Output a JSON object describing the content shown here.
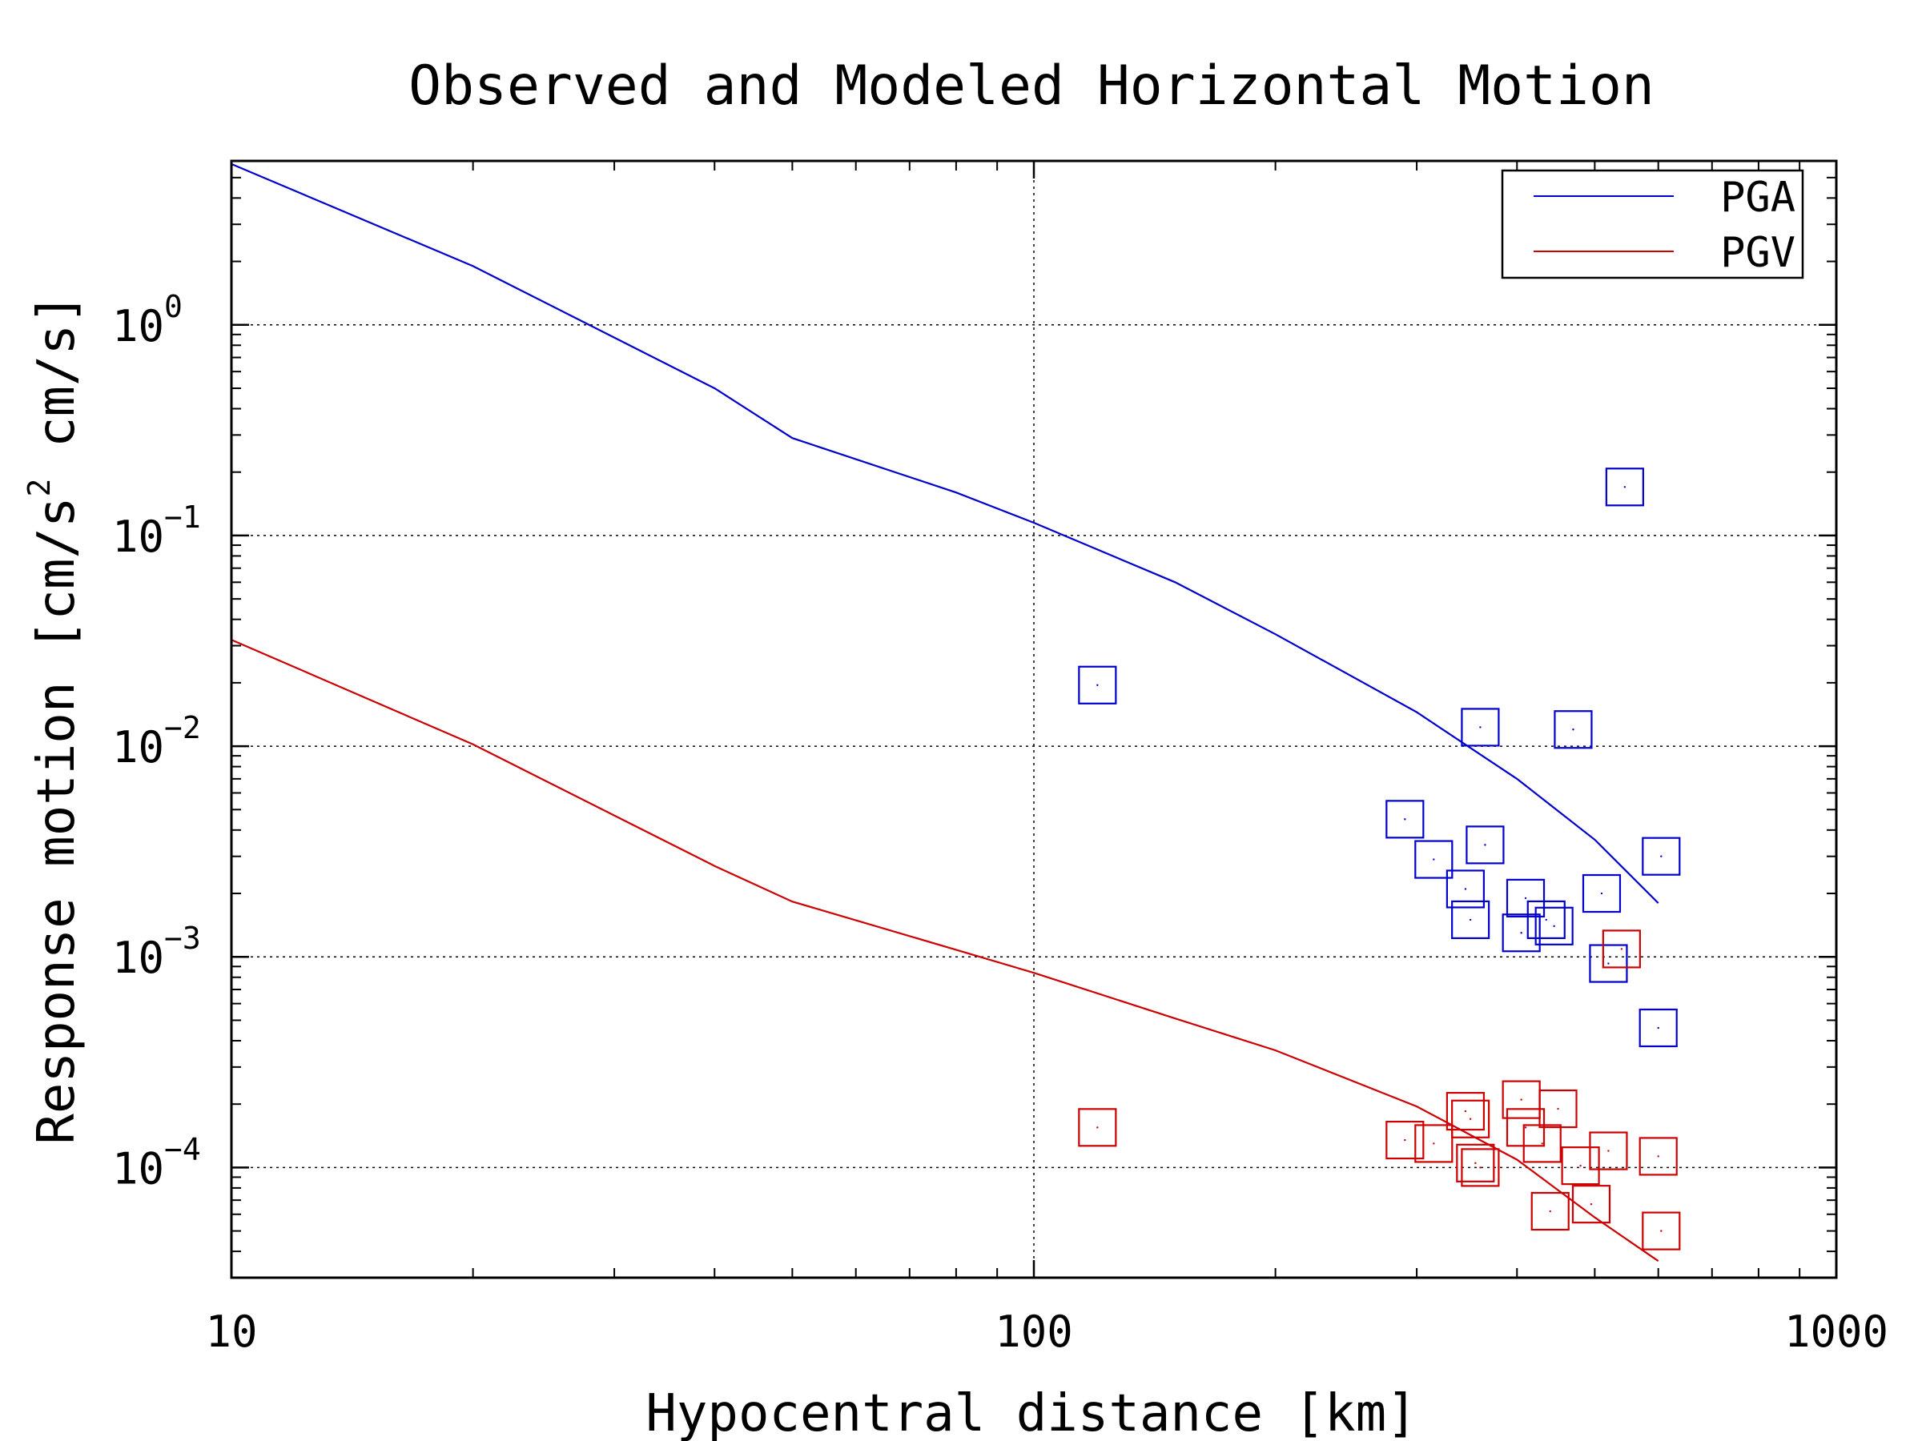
{
  "chart_data": {
    "type": "line",
    "title": "Observed and Modeled Horizontal Motion",
    "xlabel": "Hypocentral distance [km]",
    "ylabel": {
      "prefix": "Response motion  [cm/s",
      "superscript": "2",
      "suffix": "  cm/s]"
    },
    "x_scale": "log",
    "y_scale": "log",
    "xlim": [
      10,
      1000
    ],
    "ylim": [
      3e-05,
      6
    ],
    "grid": true,
    "legend_position": "top-right",
    "x_ticks": [
      {
        "value": 10,
        "label": "10"
      },
      {
        "value": 100,
        "label": "100"
      },
      {
        "value": 1000,
        "label": "1000"
      }
    ],
    "y_ticks": [
      {
        "value": 1,
        "base": "10",
        "exp": "0"
      },
      {
        "value": 0.1,
        "base": "10",
        "exp": "−1"
      },
      {
        "value": 0.01,
        "base": "10",
        "exp": "−2"
      },
      {
        "value": 0.001,
        "base": "10",
        "exp": "−3"
      },
      {
        "value": 0.0001,
        "base": "10",
        "exp": "−4"
      }
    ],
    "series": [
      {
        "name": "PGA",
        "color": "#0000cc",
        "x": [
          10,
          20,
          40,
          50,
          80,
          100,
          150,
          200,
          300,
          400,
          500,
          600
        ],
        "y": [
          5.8,
          1.9,
          0.5,
          0.29,
          0.16,
          0.115,
          0.06,
          0.034,
          0.0145,
          0.007,
          0.0036,
          0.0018
        ]
      },
      {
        "name": "PGV",
        "color": "#cc0000",
        "x": [
          10,
          20,
          40,
          50,
          80,
          100,
          150,
          200,
          300,
          400,
          500,
          600
        ],
        "y": [
          0.032,
          0.0102,
          0.0027,
          0.00183,
          0.00108,
          0.00084,
          0.00051,
          0.00036,
          0.000195,
          0.000109,
          5.8e-05,
          3.6e-05
        ]
      }
    ],
    "observations": [
      {
        "name": "PGA",
        "color": "#0000cc",
        "x": [
          120,
          360,
          470,
          545,
          290,
          315,
          345,
          350,
          365,
          410,
          405,
          435,
          445,
          510,
          520,
          605,
          600
        ],
        "y": [
          0.0195,
          0.0123,
          0.012,
          0.17,
          0.0045,
          0.0029,
          0.0021,
          0.0015,
          0.0034,
          0.0019,
          0.0013,
          0.0015,
          0.0014,
          0.002,
          0.00093,
          0.003,
          0.00046
        ]
      },
      {
        "name": "PGV",
        "color": "#cc0000",
        "x": [
          120,
          290,
          315,
          345,
          350,
          355,
          360,
          405,
          410,
          430,
          440,
          450,
          480,
          495,
          520,
          540,
          600,
          605
        ],
        "y": [
          0.000155,
          0.000135,
          0.00013,
          0.000185,
          0.00017,
          0.000105,
          0.0001,
          0.00021,
          0.000155,
          0.00013,
          6.2e-05,
          0.00019,
          0.000102,
          6.7e-05,
          0.00012,
          0.00109,
          0.000113,
          5e-05
        ]
      }
    ]
  }
}
